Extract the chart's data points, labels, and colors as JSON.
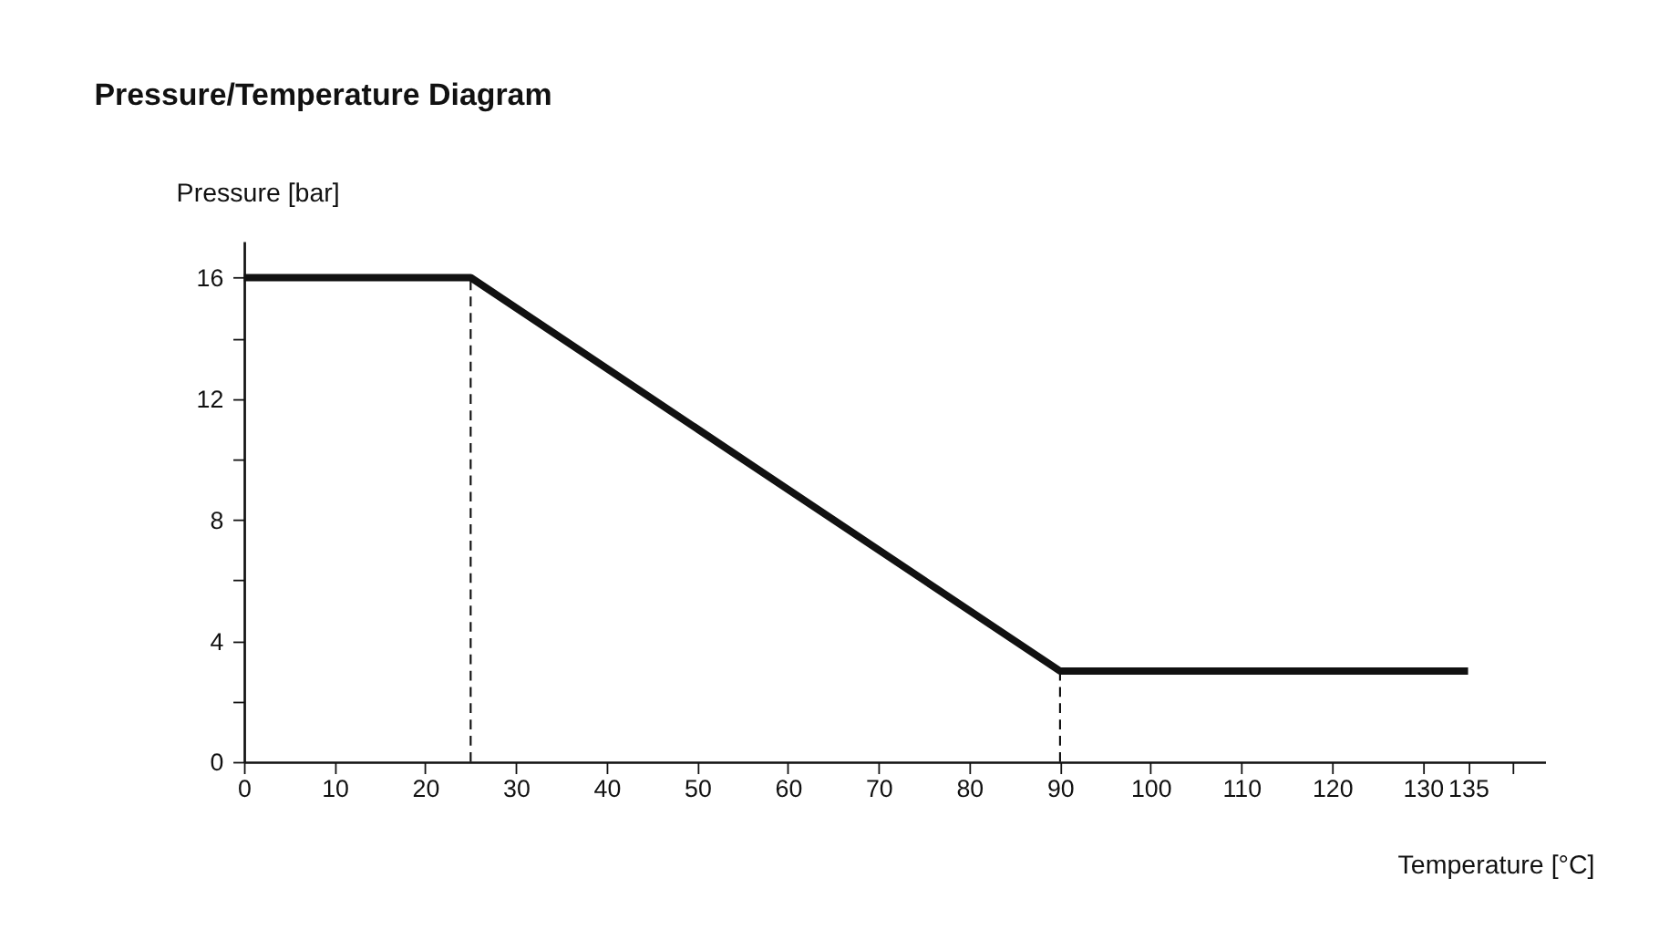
{
  "chart_data": {
    "type": "line",
    "title": "Pressure/Temperature Diagram",
    "xlabel": "Temperature [°C]",
    "ylabel": "Pressure [bar]",
    "x": [
      0,
      25,
      90,
      135
    ],
    "series": [
      {
        "color": "#111111",
        "values": [
          16,
          16,
          3,
          3
        ]
      }
    ],
    "xlim": [
      0,
      143.5
    ],
    "ylim": [
      0,
      17.2
    ],
    "xticks": [
      0,
      10,
      20,
      30,
      40,
      50,
      60,
      70,
      80,
      90,
      100,
      110,
      120,
      130,
      135,
      {
        "value": 140,
        "label": null
      }
    ],
    "yticks": [
      0,
      {
        "value": 2,
        "label": null
      },
      4,
      {
        "value": 6,
        "label": null
      },
      8,
      {
        "value": 10,
        "label": null
      },
      12,
      {
        "value": 14,
        "label": null
      },
      16
    ],
    "ref_lines": [
      {
        "axis": "x",
        "value": 25,
        "color": "#111111",
        "line_style": "dashed"
      },
      {
        "axis": "x",
        "value": 90,
        "color": "#111111",
        "line_style": "dashed"
      }
    ],
    "grid": false,
    "line_style": "solid",
    "marker": "none"
  }
}
